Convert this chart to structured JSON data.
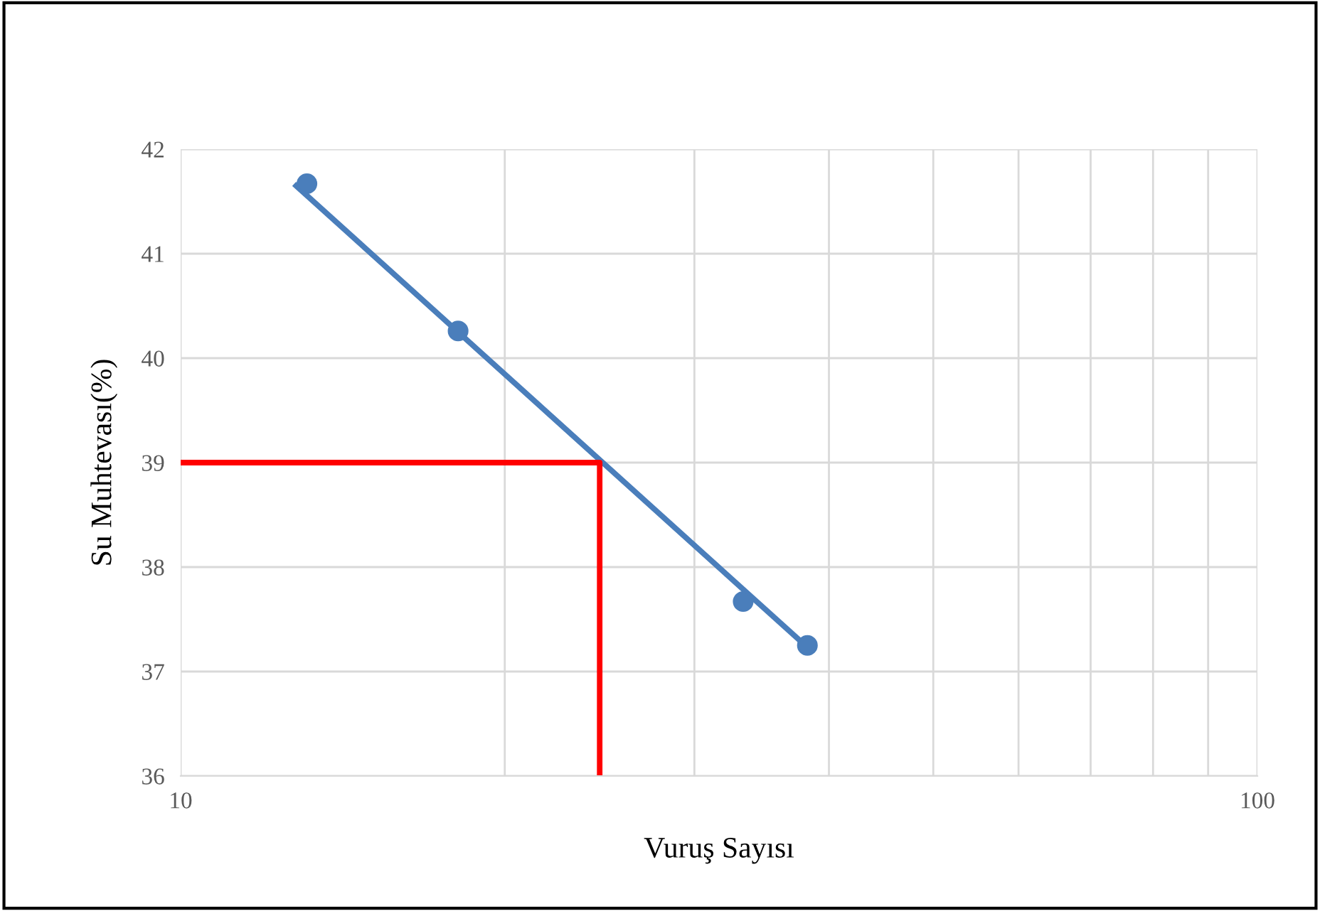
{
  "chart_data": {
    "type": "line",
    "xlabel": "Vuruş Sayısı",
    "ylabel": "Su Muhtevası(%)",
    "log": "x",
    "xlim": [
      10,
      100
    ],
    "ylim": [
      36,
      42
    ],
    "xticks": [
      10,
      {
        "value": 20,
        "label": null
      },
      {
        "value": 30,
        "label": null
      },
      {
        "value": 40,
        "label": null
      },
      {
        "value": 50,
        "label": null
      },
      {
        "value": 60,
        "label": null
      },
      {
        "value": 70,
        "label": null
      },
      {
        "value": 80,
        "label": null
      },
      {
        "value": 90,
        "label": null
      },
      100
    ],
    "yticks": [
      36,
      37,
      38,
      39,
      40,
      41,
      42
    ],
    "grid": true,
    "legend": false,
    "series": [
      {
        "color": "#4a7ebb",
        "x": [
          12.8,
          38.5
        ],
        "values": [
          41.65,
          37.2
        ],
        "marker": "none"
      },
      {
        "type": "scatter",
        "color": "#4a7ebb",
        "x": [
          13.1,
          18.1,
          33.3,
          38.2
        ],
        "values": [
          41.67,
          40.26,
          37.67,
          37.25
        ],
        "marker": "circle"
      },
      {
        "color": "#ff0000",
        "x": [
          10,
          24.5,
          24.5
        ],
        "values": [
          39,
          39,
          36
        ],
        "marker": "none"
      }
    ]
  }
}
